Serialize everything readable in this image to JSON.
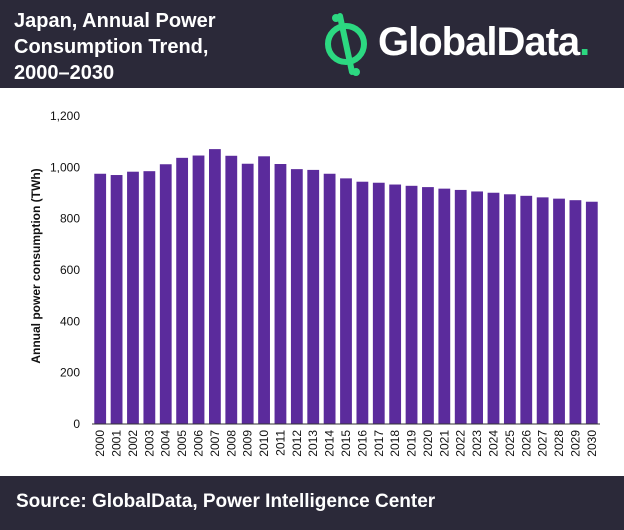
{
  "header": {
    "title": "Japan, Annual Power\nConsumption Trend,\n2000–2030",
    "logo": {
      "text": "GlobalData",
      "dot": ".",
      "accent_color": "#2cd881",
      "icon": "globaldata-logo-icon"
    }
  },
  "footer": {
    "source": "Source: GlobalData, Power Intelligence Center"
  },
  "colors": {
    "background_bands": "#2b2939",
    "bar": "#5b2b9c"
  },
  "chart_data": {
    "type": "bar",
    "title": "",
    "xlabel": "",
    "ylabel": "Annual power consumption (TWh)",
    "ylim": [
      0,
      1200
    ],
    "yticks": [
      0,
      200,
      400,
      600,
      800,
      "1,000",
      "1,200"
    ],
    "grid": false,
    "categories": [
      "2000",
      "2001",
      "2002",
      "2003",
      "2004",
      "2005",
      "2006",
      "2007",
      "2008",
      "2009",
      "2010",
      "2011",
      "2012",
      "2013",
      "2014",
      "2015",
      "2016",
      "2017",
      "2018",
      "2019",
      "2020",
      "2021",
      "2022",
      "2023",
      "2024",
      "2025",
      "2026",
      "2027",
      "2028",
      "2029",
      "2030"
    ],
    "values": [
      975,
      970,
      983,
      985,
      1012,
      1037,
      1046,
      1071,
      1045,
      1014,
      1043,
      1013,
      993,
      990,
      975,
      957,
      944,
      940,
      933,
      928,
      923,
      917,
      912,
      906,
      901,
      895,
      889,
      883,
      878,
      872,
      866
    ]
  }
}
